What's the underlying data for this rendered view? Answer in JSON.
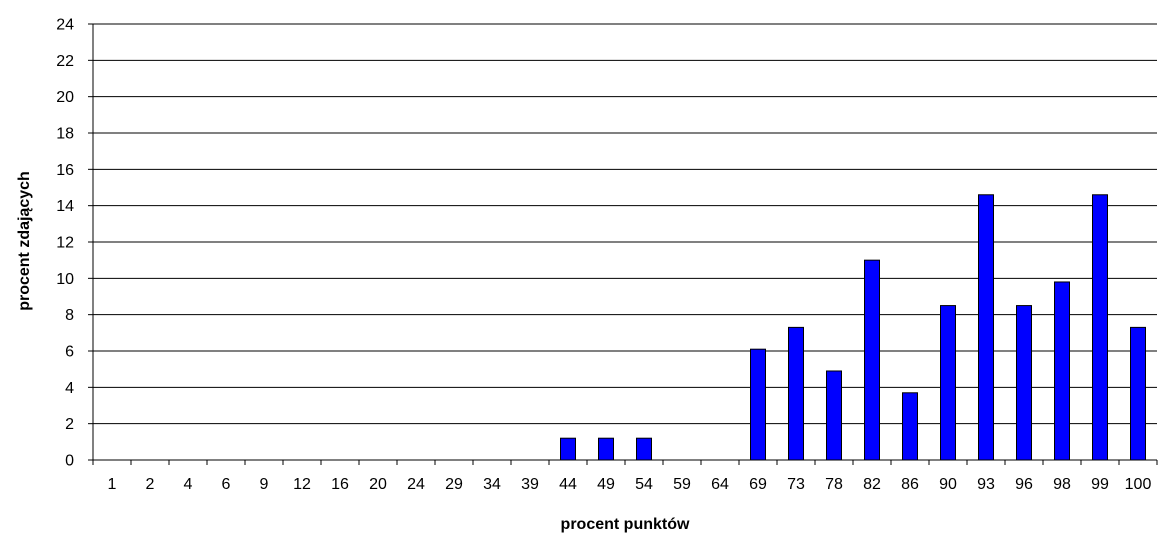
{
  "chart_data": {
    "type": "bar",
    "xlabel": "procent punktów",
    "ylabel": "procent zdających",
    "ylim": [
      0,
      24
    ],
    "yticks": [
      "0",
      "2",
      "4",
      "6",
      "8",
      "10",
      "12",
      "14",
      "16",
      "18",
      "20",
      "22",
      "24"
    ],
    "grid": "horizontal",
    "categories": [
      "1",
      "2",
      "4",
      "6",
      "9",
      "12",
      "16",
      "20",
      "24",
      "29",
      "34",
      "39",
      "44",
      "49",
      "54",
      "59",
      "64",
      "69",
      "73",
      "78",
      "82",
      "86",
      "90",
      "93",
      "96",
      "98",
      "99",
      "100"
    ],
    "values": [
      0,
      0,
      0,
      0,
      0,
      0,
      0,
      0,
      0,
      0,
      0,
      0,
      1.2,
      1.2,
      1.2,
      0,
      0,
      6.1,
      7.3,
      4.9,
      11.0,
      3.7,
      8.5,
      14.6,
      8.5,
      9.8,
      14.6,
      7.3
    ],
    "colors": {
      "bar_fill": "#0000FF",
      "bar_stroke": "#000000",
      "grid": "#000000"
    }
  }
}
